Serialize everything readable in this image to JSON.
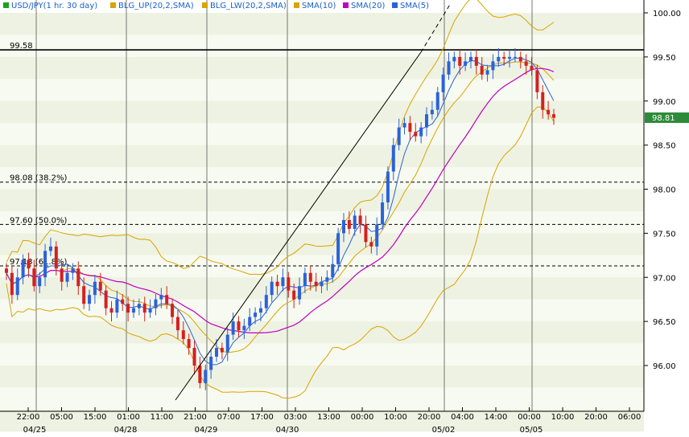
{
  "chart_data": {
    "type": "candlestick",
    "legend": [
      {
        "label": "USD/JPY(1 hr. 30 day)",
        "color": "#1aa31a"
      },
      {
        "label": "BLG_UP(20,2,SMA)",
        "color": "#d9a400"
      },
      {
        "label": "BLG_LW(20,2,SMA)",
        "color": "#d9a400"
      },
      {
        "label": "SMA(10)",
        "color": "#d9a400"
      },
      {
        "label": "SMA(20)",
        "color": "#c000c0"
      },
      {
        "label": "SMA(5)",
        "color": "#2b62d9"
      }
    ],
    "ylim": [
      95.6,
      100.1
    ],
    "y_ticks": [
      "100.00",
      "99.50",
      "99.00",
      "98.50",
      "98.00",
      "97.50",
      "97.00",
      "96.50",
      "96.00"
    ],
    "y_tick_values": [
      100.0,
      99.5,
      99.0,
      98.5,
      98.0,
      97.5,
      97.0,
      96.5,
      96.0
    ],
    "x_tick_labels": [
      "22:00",
      "05:00",
      "15:00",
      "01:00",
      "11:00",
      "21:00",
      "07:00",
      "17:00",
      "03:00",
      "13:00",
      "00:00",
      "10:00",
      "20:00",
      "04:00",
      "14:00",
      "00:00",
      "10:00",
      "20:00",
      "06:00"
    ],
    "date_labels": [
      "04/25",
      "04/28",
      "04/29",
      "04/30",
      "05/02",
      "05/05"
    ],
    "current_price": "98.81",
    "horizontal_lines": [
      {
        "label": "99.58",
        "value": 99.58,
        "style": "solid"
      },
      {
        "label": "98.08 (38.2%)",
        "value": 98.08,
        "style": "dashed"
      },
      {
        "label": "97.60 (50.0%)",
        "value": 97.6,
        "style": "dashed"
      },
      {
        "label": "97.13 (61.8%)",
        "value": 97.13,
        "style": "dashed"
      }
    ],
    "closes": [
      97.05,
      96.8,
      97.0,
      97.2,
      97.1,
      96.9,
      97.0,
      97.3,
      97.35,
      97.1,
      96.95,
      97.05,
      97.1,
      96.9,
      96.7,
      96.8,
      96.95,
      96.85,
      96.65,
      96.6,
      96.75,
      96.7,
      96.6,
      96.65,
      96.7,
      96.6,
      96.65,
      96.75,
      96.8,
      96.7,
      96.55,
      96.4,
      96.3,
      96.2,
      96.0,
      95.8,
      95.95,
      96.1,
      96.2,
      96.15,
      96.35,
      96.5,
      96.4,
      96.45,
      96.55,
      96.6,
      96.65,
      96.8,
      96.95,
      96.9,
      97.0,
      96.85,
      96.75,
      96.9,
      97.05,
      96.95,
      96.9,
      96.95,
      97.0,
      97.15,
      97.5,
      97.65,
      97.55,
      97.7,
      97.6,
      97.4,
      97.35,
      97.6,
      97.85,
      98.2,
      98.5,
      98.7,
      98.75,
      98.65,
      98.6,
      98.7,
      98.85,
      98.9,
      99.1,
      99.3,
      99.45,
      99.5,
      99.4,
      99.45,
      99.5,
      99.4,
      99.3,
      99.35,
      99.45,
      99.5,
      99.48,
      99.5,
      99.5,
      99.45,
      99.4,
      99.35,
      99.1,
      98.9,
      98.85,
      98.81
    ]
  }
}
